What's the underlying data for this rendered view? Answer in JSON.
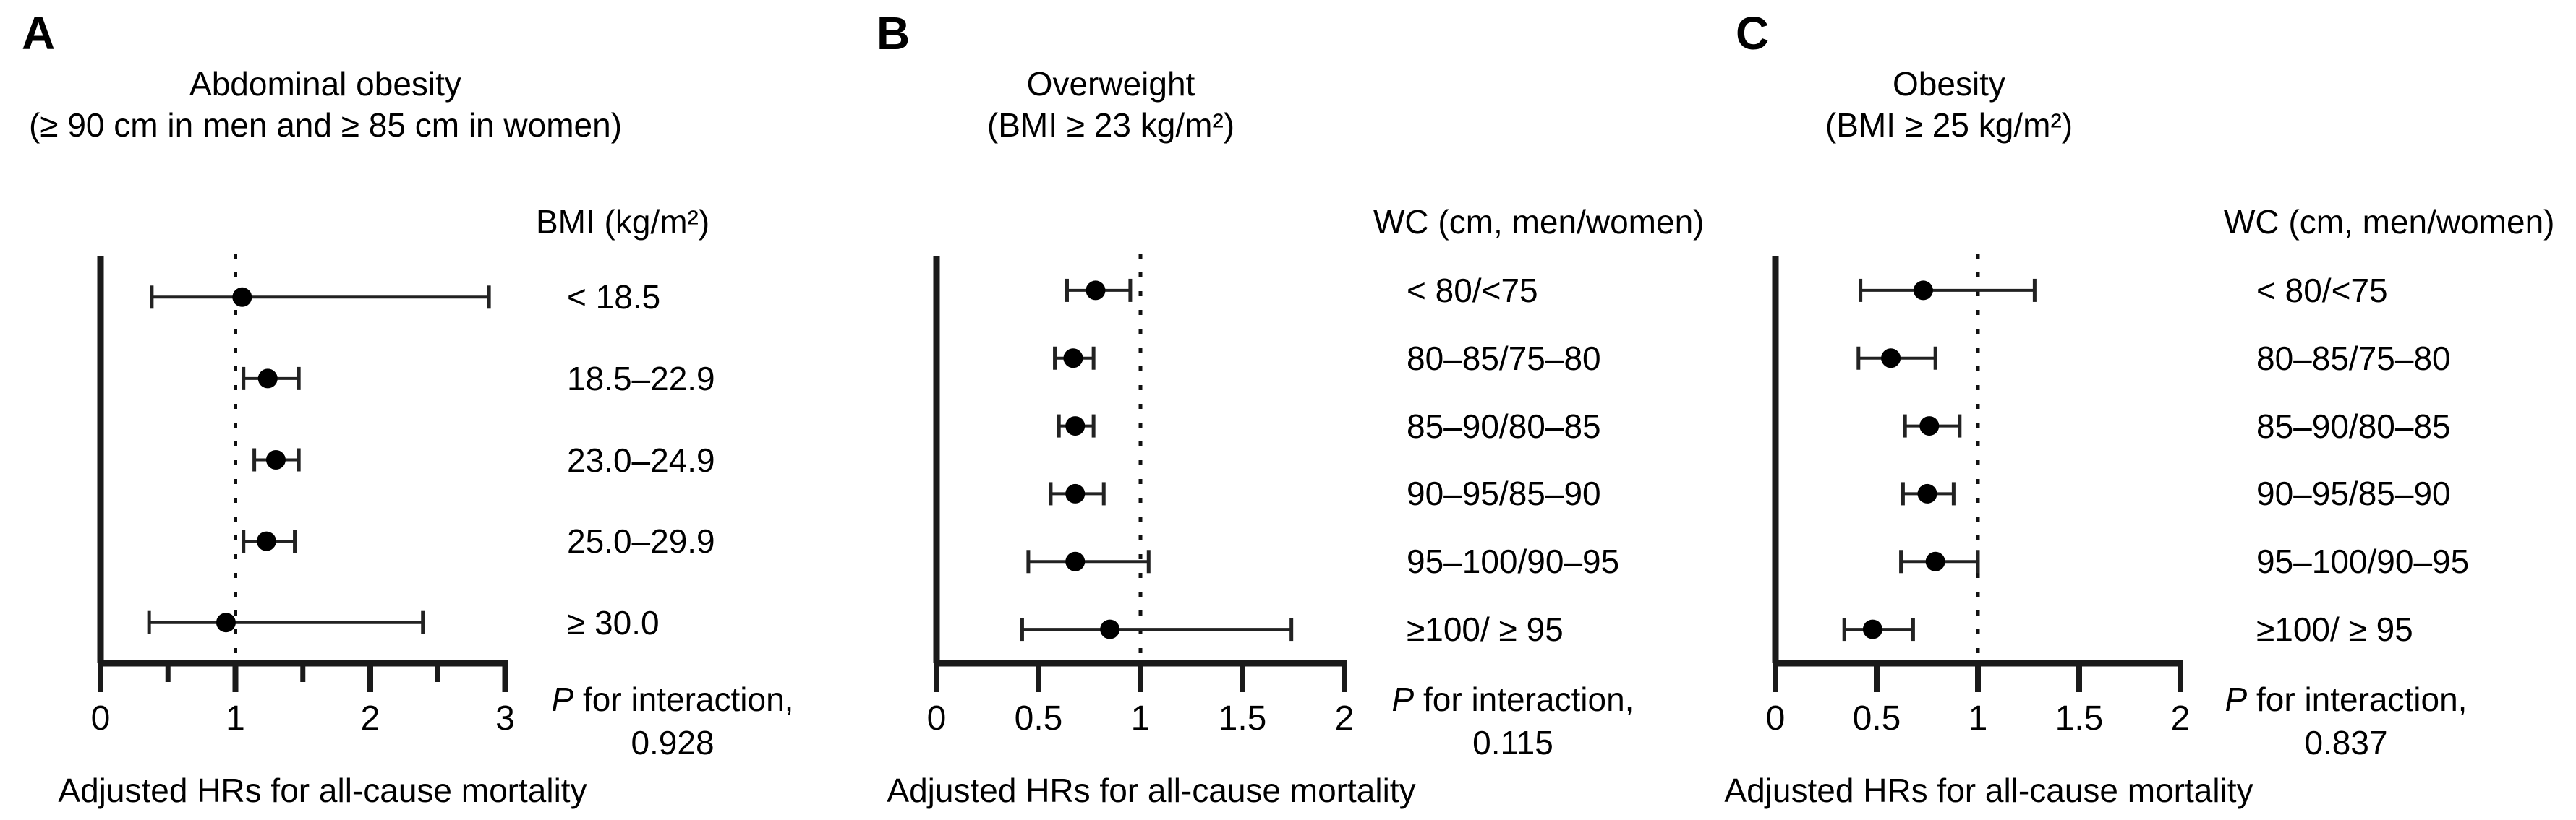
{
  "figure": {
    "caption": "Adjusted HRs for all-cause mortality",
    "colors": {
      "marker": "#000000",
      "axis": "#1a1a1a",
      "error_bar": "#222222",
      "reference_line": "#111111"
    }
  },
  "chart_data": [
    {
      "type": "forest",
      "panel_letter": "A",
      "title_line1": "Abdominal obesity",
      "title_line2": "(≥ 90 cm in men and ≥ 85 cm in women)",
      "column_header": "BMI (kg/m²)",
      "xlabel": "Adjusted HRs for all-cause mortality",
      "xlim": [
        0,
        3
      ],
      "reference_x": 1,
      "grid": false,
      "major_ticks": [
        {
          "v": 0,
          "label": "0"
        },
        {
          "v": 1,
          "label": "1"
        },
        {
          "v": 2,
          "label": "2"
        },
        {
          "v": 3,
          "label": "3"
        }
      ],
      "minor_ticks": [
        0.5,
        1.5,
        2.5
      ],
      "rows": [
        {
          "label": "< 18.5",
          "hr": 1.05,
          "ci_low": 0.38,
          "ci_high": 2.88
        },
        {
          "label": "18.5–22.9",
          "hr": 1.24,
          "ci_low": 1.06,
          "ci_high": 1.47
        },
        {
          "label": "23.0–24.9",
          "hr": 1.3,
          "ci_low": 1.14,
          "ci_high": 1.47
        },
        {
          "label": "25.0–29.9",
          "hr": 1.23,
          "ci_low": 1.06,
          "ci_high": 1.44
        },
        {
          "label": "≥ 30.0",
          "hr": 0.93,
          "ci_low": 0.36,
          "ci_high": 2.39
        }
      ],
      "p_interaction_prefix": "P",
      "p_interaction_rest": " for interaction,",
      "p_value": "0.928"
    },
    {
      "type": "forest",
      "panel_letter": "B",
      "title_line1": "Overweight",
      "title_line2": "(BMI ≥ 23 kg/m²)",
      "column_header": "WC (cm, men/women)",
      "xlabel": "Adjusted HRs for all-cause mortality",
      "xlim": [
        0,
        2
      ],
      "reference_x": 1,
      "grid": false,
      "major_ticks": [
        {
          "v": 0,
          "label": "0"
        },
        {
          "v": 0.5,
          "label": "0.5"
        },
        {
          "v": 1,
          "label": "1"
        },
        {
          "v": 1.5,
          "label": "1.5"
        },
        {
          "v": 2,
          "label": "2"
        }
      ],
      "minor_ticks": [],
      "rows": [
        {
          "label": "< 80/<75",
          "hr": 0.78,
          "ci_low": 0.64,
          "ci_high": 0.95
        },
        {
          "label": "80–85/75–80",
          "hr": 0.67,
          "ci_low": 0.58,
          "ci_high": 0.77
        },
        {
          "label": "85–90/80–85",
          "hr": 0.68,
          "ci_low": 0.6,
          "ci_high": 0.77
        },
        {
          "label": "90–95/85–90",
          "hr": 0.68,
          "ci_low": 0.56,
          "ci_high": 0.82
        },
        {
          "label": "95–100/90–95",
          "hr": 0.68,
          "ci_low": 0.45,
          "ci_high": 1.04
        },
        {
          "label": "≥100/ ≥ 95",
          "hr": 0.85,
          "ci_low": 0.42,
          "ci_high": 1.74
        }
      ],
      "p_interaction_prefix": "P",
      "p_interaction_rest": " for interaction,",
      "p_value": "0.115"
    },
    {
      "type": "forest",
      "panel_letter": "C",
      "title_line1": "Obesity",
      "title_line2": "(BMI ≥ 25 kg/m²)",
      "column_header": "WC (cm, men/women)",
      "xlabel": "Adjusted HRs for all-cause mortality",
      "xlim": [
        0,
        2
      ],
      "reference_x": 1,
      "grid": false,
      "major_ticks": [
        {
          "v": 0,
          "label": "0"
        },
        {
          "v": 0.5,
          "label": "0.5"
        },
        {
          "v": 1,
          "label": "1"
        },
        {
          "v": 1.5,
          "label": "1.5"
        },
        {
          "v": 2,
          "label": "2"
        }
      ],
      "minor_ticks": [],
      "rows": [
        {
          "label": "< 80/<75",
          "hr": 0.73,
          "ci_low": 0.42,
          "ci_high": 1.28
        },
        {
          "label": "80–85/75–80",
          "hr": 0.57,
          "ci_low": 0.41,
          "ci_high": 0.79
        },
        {
          "label": "85–90/80–85",
          "hr": 0.76,
          "ci_low": 0.64,
          "ci_high": 0.91
        },
        {
          "label": "90–95/85–90",
          "hr": 0.75,
          "ci_low": 0.63,
          "ci_high": 0.88
        },
        {
          "label": "95–100/90–95",
          "hr": 0.79,
          "ci_low": 0.62,
          "ci_high": 1.0
        },
        {
          "label": "≥100/ ≥ 95",
          "hr": 0.48,
          "ci_low": 0.34,
          "ci_high": 0.68
        }
      ],
      "p_interaction_prefix": "P",
      "p_interaction_rest": " for interaction,",
      "p_value": "0.837"
    }
  ]
}
